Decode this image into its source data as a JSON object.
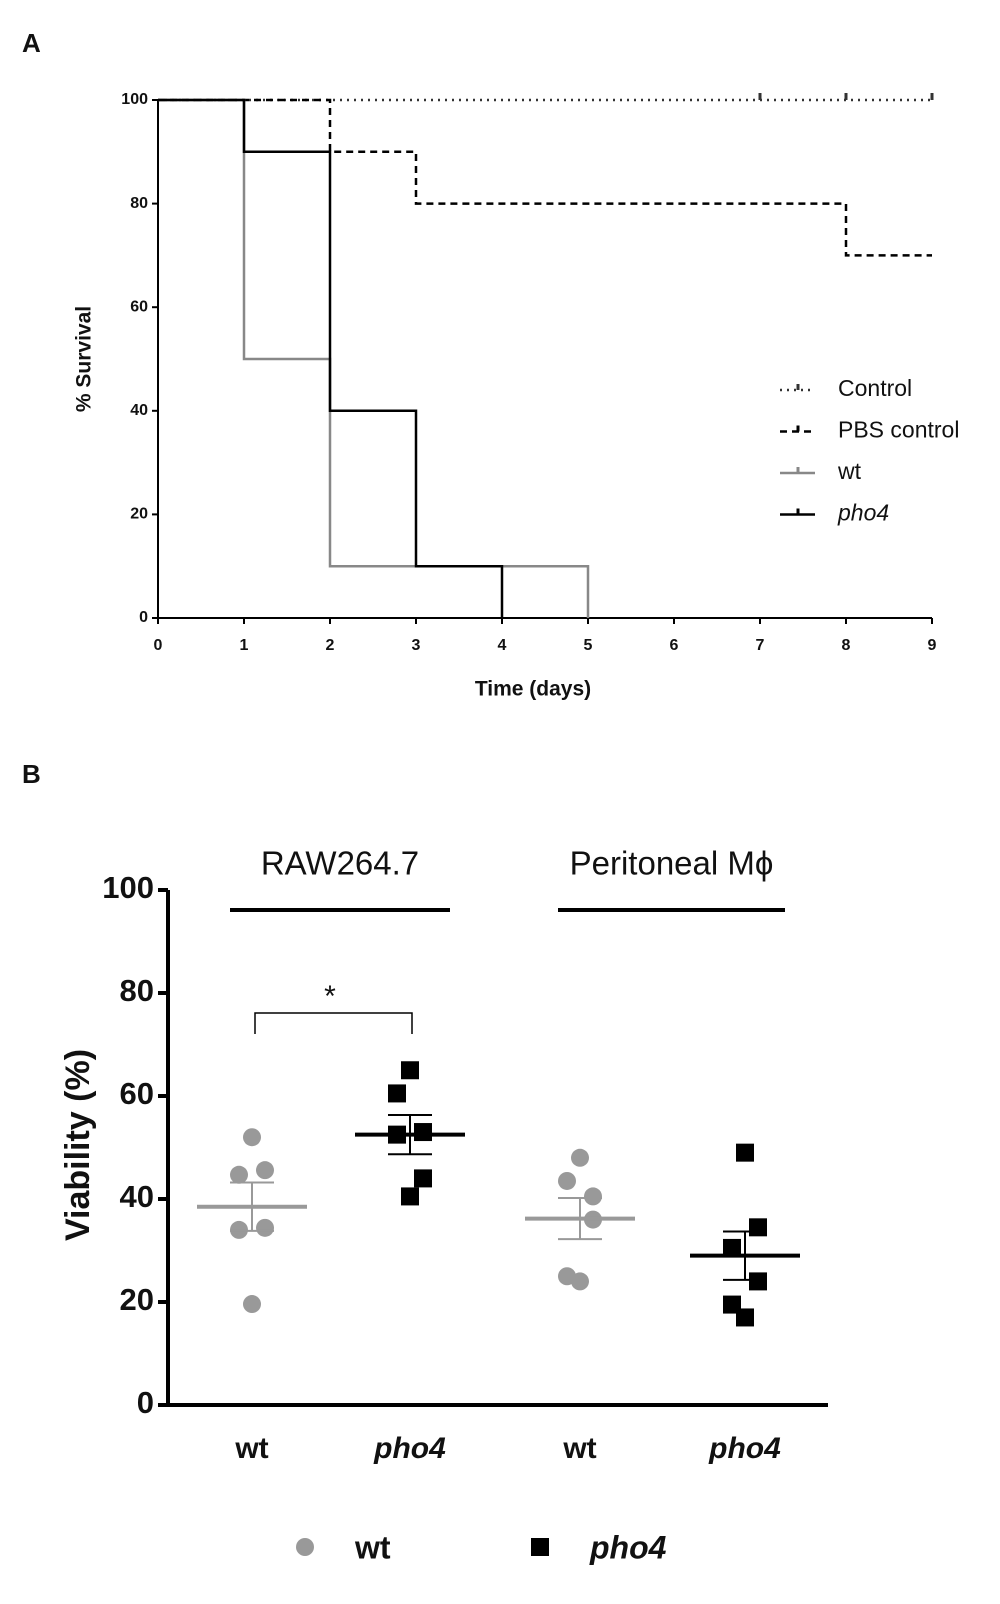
{
  "chart_data": [
    {
      "type": "step",
      "panel_label": "A",
      "ylabel": "% Survival",
      "xlabel": "Time (days)",
      "x": [
        0,
        1,
        2,
        3,
        4,
        5,
        6,
        7,
        8,
        9
      ],
      "xlim": [
        0,
        9
      ],
      "xticks": [
        0,
        1,
        2,
        3,
        4,
        5,
        6,
        7,
        8,
        9
      ],
      "ylim": [
        0,
        100
      ],
      "yticks": [
        0,
        20,
        40,
        60,
        80,
        100
      ],
      "legend": "right",
      "series": [
        {
          "name": "Control",
          "color": "#333333",
          "style": "dotted",
          "values": [
            100,
            100,
            100,
            100,
            100,
            100,
            100,
            100,
            100,
            100
          ],
          "censored": [
            7,
            8,
            9
          ]
        },
        {
          "name": " PBS control",
          "color": "#000000",
          "style": "dashed",
          "values": [
            100,
            100,
            90,
            80,
            80,
            80,
            80,
            80,
            70,
            70
          ]
        },
        {
          "name": "wt",
          "color": "#888888",
          "style": "solid",
          "values": [
            100,
            50,
            10,
            10,
            10,
            0,
            null,
            null,
            null,
            null
          ]
        },
        {
          "name": "pho4",
          "color": "#000000",
          "style": "solid",
          "italic": true,
          "values": [
            100,
            90,
            40,
            10,
            0,
            null,
            null,
            null,
            null,
            null
          ]
        }
      ]
    },
    {
      "type": "dot",
      "panel_label": "B",
      "ylabel": "Viability (%)",
      "group_labels": [
        "RAW264.7",
        "Peritoneal Mϕ"
      ],
      "significance": "*",
      "categories": [
        "wt",
        "pho4",
        "wt",
        "pho4"
      ],
      "ylim": [
        0,
        100
      ],
      "yticks": [
        0,
        20,
        40,
        60,
        80,
        100
      ],
      "series": [
        {
          "name": "wt",
          "color": "#999999",
          "marker": "circle",
          "values": [
            [
              52,
              45.6,
              44.7,
              34.4,
              34,
              19.6
            ],
            null,
            [
              48,
              40.5,
              43.5,
              36,
              25,
              24
            ],
            null
          ],
          "means": [
            38.5,
            null,
            36.2,
            null
          ],
          "sems": [
            4.7,
            null,
            4,
            null
          ]
        },
        {
          "name": "pho4",
          "color": "#000000",
          "marker": "square",
          "italic": true,
          "values": [
            null,
            [
              65,
              53,
              60.5,
              44,
              52.5,
              40.5
            ],
            null,
            [
              49,
              34.5,
              30.5,
              24,
              19.5,
              17
            ]
          ],
          "means": [
            null,
            52.5,
            null,
            29
          ],
          "sems": [
            null,
            3.8,
            null,
            4.7
          ]
        }
      ]
    }
  ]
}
